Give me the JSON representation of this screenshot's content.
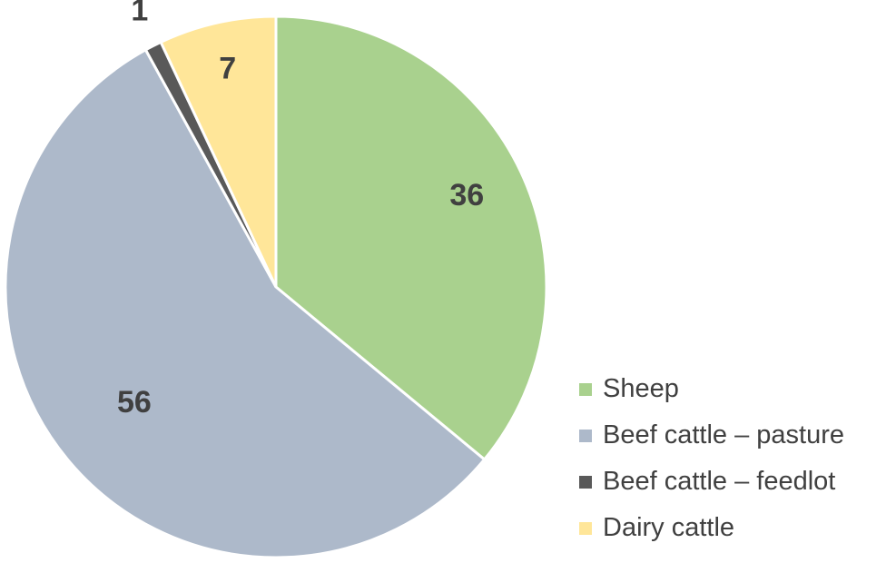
{
  "chart_data": {
    "type": "pie",
    "title": "",
    "categories": [
      "Sheep",
      "Beef cattle – pasture",
      "Beef cattle – feedlot",
      "Dairy cattle"
    ],
    "values": [
      36,
      56,
      1,
      7
    ],
    "data_labels": [
      "36",
      "56",
      "1",
      "7"
    ],
    "colors": [
      "#a9d18e",
      "#adb9ca",
      "#595959",
      "#ffe699"
    ],
    "start_angle": "12 o'clock",
    "direction": "clockwise",
    "legend_position": "bottom-right"
  }
}
